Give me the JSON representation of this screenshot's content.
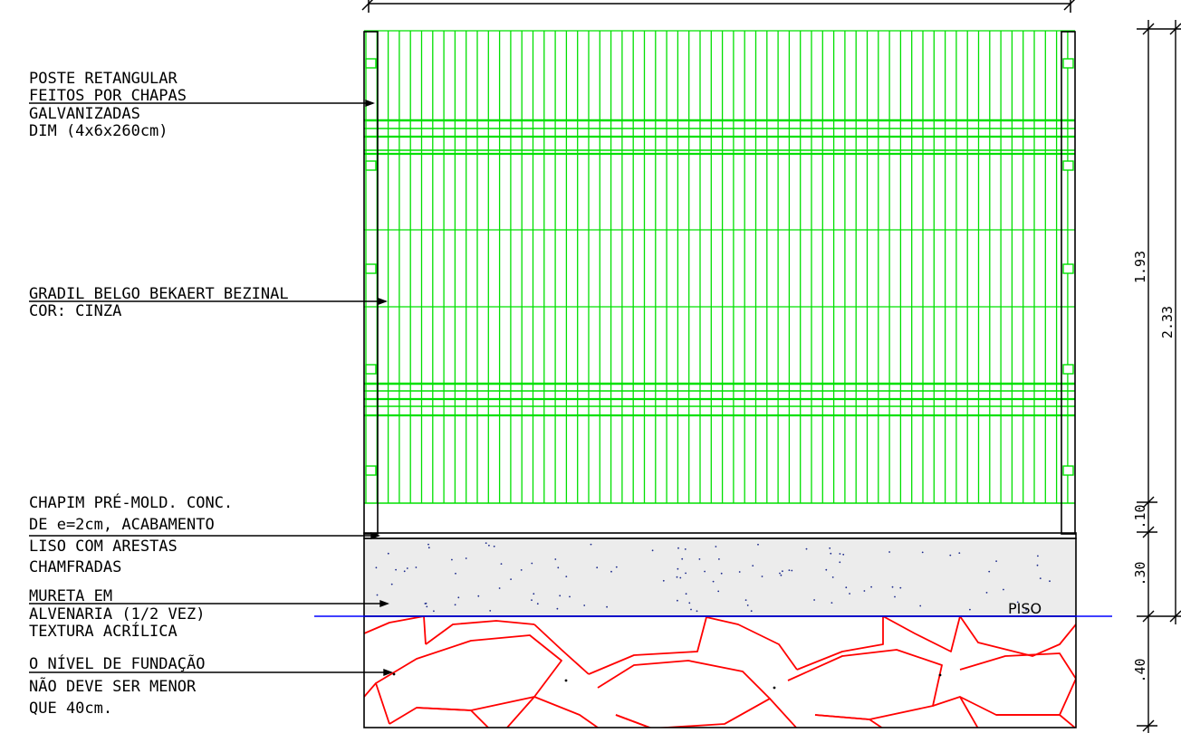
{
  "colors": {
    "grade": "#00e000",
    "stone": "#ff0000",
    "piso_line": "#0000ff",
    "concrete": "#ececec",
    "concrete_dots": "#1c2a8c",
    "ink": "#000000"
  },
  "labels": {
    "poste": [
      "POSTE RETANGULAR",
      "FEITOS POR CHAPAS",
      "GALVANIZADAS",
      "DIM (4x6x260cm)"
    ],
    "gradil": [
      "GRADIL BELGO BEKAERT BEZINAL",
      "COR: CINZA"
    ],
    "chapim": [
      "CHAPIM PRÉ-MOLD. CONC.",
      "DE e=2cm, ACABAMENTO",
      "LISO COM ARESTAS",
      "CHAMFRADAS"
    ],
    "mureta": [
      "MURETA EM",
      "ALVENARIA (1/2 VEZ)",
      "TEXTURA ACRÍLICA"
    ],
    "fundacao": [
      "O NÍVEL DE FUNDAÇÃO",
      "NÃO DEVE SER MENOR",
      "QUE 40cm."
    ]
  },
  "piso_label": "PISO",
  "dimensions": {
    "inner": [
      {
        "key": "grade",
        "text": "1.93"
      },
      {
        "key": "chapim",
        "text": ".10"
      },
      {
        "key": "mureta",
        "text": ".30"
      },
      {
        "key": "fundacao",
        "text": ".40"
      }
    ],
    "total": "2.33"
  }
}
